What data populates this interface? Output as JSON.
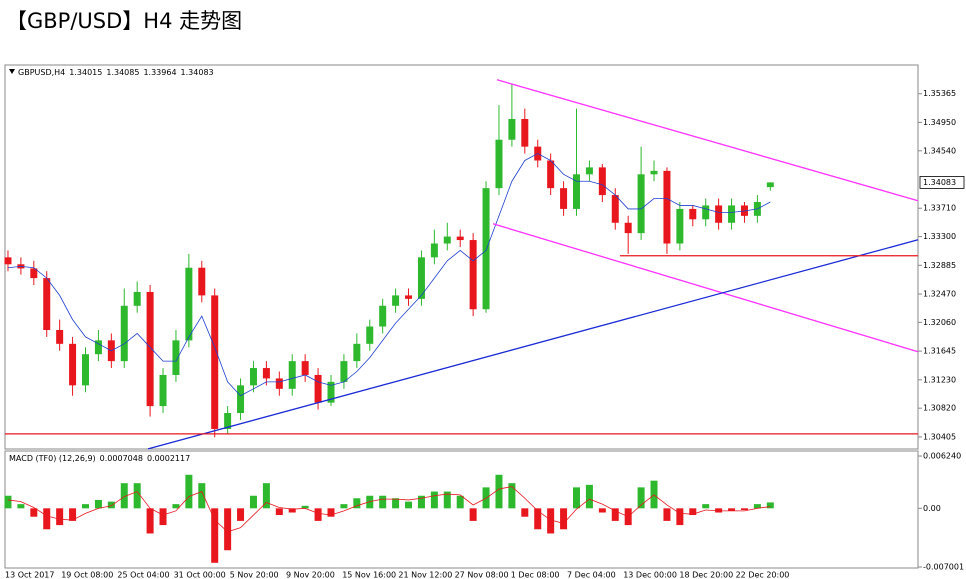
{
  "title": "【GBP/USD】H4 走势图",
  "chart_data": [
    {
      "type": "candlestick",
      "symbol": "GBPUSD,H4",
      "up_color": "#2db82d",
      "down_color": "#e8161d",
      "open": [
        1.33,
        1.329,
        1.3284,
        1.327,
        1.3195,
        1.3175,
        1.3115,
        1.316,
        1.318,
        1.315,
        1.323,
        1.325,
        1.3085,
        1.313,
        1.318,
        1.3285,
        1.3245,
        1.3052,
        1.3075,
        1.3115,
        1.314,
        1.3125,
        1.311,
        1.315,
        1.313,
        1.309,
        1.312,
        1.315,
        1.3175,
        1.32,
        1.323,
        1.3245,
        1.324,
        1.33,
        1.332,
        1.333,
        1.3325,
        1.3225,
        1.34,
        1.347,
        1.35,
        1.346,
        1.344,
        1.34,
        1.337,
        1.342,
        1.343,
        1.339,
        1.335,
        1.3335,
        1.342,
        1.3425,
        1.332,
        1.337,
        1.3355,
        1.3375,
        1.335,
        1.3375,
        1.336,
        1.34015
      ],
      "high": [
        1.331,
        1.33,
        1.3295,
        1.328,
        1.321,
        1.3185,
        1.317,
        1.3195,
        1.319,
        1.3255,
        1.3265,
        1.326,
        1.314,
        1.3195,
        1.3305,
        1.3295,
        1.3255,
        1.3085,
        1.3125,
        1.315,
        1.315,
        1.3135,
        1.316,
        1.316,
        1.314,
        1.313,
        1.316,
        1.319,
        1.321,
        1.324,
        1.3255,
        1.3255,
        1.331,
        1.334,
        1.335,
        1.334,
        1.3335,
        1.341,
        1.352,
        1.355,
        1.3515,
        1.347,
        1.345,
        1.341,
        1.3515,
        1.344,
        1.3435,
        1.34,
        1.336,
        1.346,
        1.344,
        1.343,
        1.338,
        1.3375,
        1.3385,
        1.3385,
        1.3385,
        1.338,
        1.339,
        1.34085
      ],
      "low": [
        1.328,
        1.3275,
        1.326,
        1.3185,
        1.3165,
        1.31,
        1.3105,
        1.315,
        1.314,
        1.314,
        1.322,
        1.307,
        1.3075,
        1.312,
        1.317,
        1.3235,
        1.304,
        1.3045,
        1.3065,
        1.3105,
        1.3115,
        1.31,
        1.31,
        1.312,
        1.308,
        1.3085,
        1.311,
        1.314,
        1.3165,
        1.319,
        1.322,
        1.323,
        1.323,
        1.329,
        1.331,
        1.3315,
        1.3215,
        1.322,
        1.339,
        1.346,
        1.345,
        1.343,
        1.339,
        1.336,
        1.336,
        1.341,
        1.338,
        1.334,
        1.3305,
        1.3325,
        1.341,
        1.3305,
        1.331,
        1.3345,
        1.3345,
        1.334,
        1.334,
        1.335,
        1.335,
        1.33964
      ],
      "close": [
        1.329,
        1.3284,
        1.327,
        1.3195,
        1.3175,
        1.3115,
        1.316,
        1.318,
        1.315,
        1.323,
        1.325,
        1.3085,
        1.313,
        1.318,
        1.3285,
        1.3245,
        1.3052,
        1.3075,
        1.3115,
        1.314,
        1.3125,
        1.311,
        1.315,
        1.313,
        1.309,
        1.312,
        1.315,
        1.3175,
        1.32,
        1.323,
        1.3245,
        1.324,
        1.33,
        1.332,
        1.333,
        1.3325,
        1.3225,
        1.34,
        1.347,
        1.35,
        1.346,
        1.344,
        1.34,
        1.337,
        1.342,
        1.343,
        1.339,
        1.335,
        1.3335,
        1.342,
        1.3425,
        1.332,
        1.337,
        1.3355,
        1.3375,
        1.335,
        1.3375,
        1.336,
        1.338,
        1.34083
      ],
      "ma": {
        "color": "#1f3fd0",
        "values": [
          1.3285,
          1.3287,
          1.3285,
          1.327,
          1.3245,
          1.321,
          1.3185,
          1.3175,
          1.3165,
          1.3175,
          1.319,
          1.317,
          1.315,
          1.315,
          1.3185,
          1.3215,
          1.317,
          1.312,
          1.31,
          1.311,
          1.312,
          1.312,
          1.3125,
          1.313,
          1.312,
          1.3115,
          1.312,
          1.3135,
          1.3155,
          1.318,
          1.3205,
          1.3225,
          1.3245,
          1.327,
          1.3295,
          1.331,
          1.3295,
          1.331,
          1.336,
          1.341,
          1.344,
          1.345,
          1.344,
          1.342,
          1.341,
          1.341,
          1.3405,
          1.339,
          1.337,
          1.337,
          1.3385,
          1.3385,
          1.3375,
          1.3375,
          1.337,
          1.3365,
          1.3365,
          1.3367,
          1.337,
          1.338
        ]
      },
      "overlays": [
        {
          "color": "#ff33ff",
          "points": [
            [
              37.85,
              1.35567
            ],
            [
              70.43,
              1.33818
            ]
          ]
        },
        {
          "color": "#ff33ff",
          "points": [
            [
              37.54,
              1.33485
            ],
            [
              70.43,
              1.31635
            ]
          ]
        },
        {
          "color": "#1a2bd6",
          "points": [
            [
              10.84,
              1.30232
            ],
            [
              70.43,
              1.33254
            ]
          ]
        },
        {
          "color": "#e8161d",
          "points": [
            [
              -0.23,
              1.30449
            ],
            [
              70.43,
              1.30449
            ]
          ]
        },
        {
          "color": "#e8161d",
          "points": [
            [
              47.37,
              1.33023
            ],
            [
              70.43,
              1.33023
            ]
          ]
        }
      ],
      "xlim": [
        -0.23,
        70.43
      ],
      "ylim": [
        1.3023,
        1.3578
      ],
      "yticks": [
        1.35365,
        {
          "value": 1.3495,
          "label": "1.34950"
        },
        {
          "value": 1.3454,
          "label": "1.34540"
        },
        {
          "value": 1.3371,
          "label": "1.33710"
        },
        {
          "value": 1.333,
          "label": "1.33300"
        },
        1.32885,
        {
          "value": 1.3247,
          "label": "1.32470"
        },
        {
          "value": 1.3206,
          "label": "1.32060"
        },
        1.31645,
        {
          "value": 1.3123,
          "label": "1.31230"
        },
        {
          "value": 1.3082,
          "label": "1.30820"
        },
        1.30405
      ],
      "x_labels": [
        "13 Oct 2017",
        "19 Oct 08:00",
        "25 Oct 04:00",
        "31 Oct 00:00",
        "5 Nov 20:00",
        "9 Nov 20:00",
        "15 Nov 16:00",
        "21 Nov 12:00",
        "27 Nov 08:00",
        "1 Dec 08:00",
        "7 Dec 04:00",
        "13 Dec 00:00",
        "18 Dec 20:00",
        "22 Dec 20:00"
      ]
    },
    {
      "type": "macd",
      "name": "MACD (TF0) (12,26,9)",
      "up_color": "#2db82d",
      "down_color": "#e8161d",
      "values": [
        0.0015,
        0.0005,
        -0.001,
        -0.0025,
        -0.002,
        -0.0015,
        0.0005,
        0.001,
        0.0008,
        0.003,
        0.003,
        -0.003,
        -0.002,
        0.0005,
        0.004,
        0.003,
        -0.0065,
        -0.005,
        -0.0015,
        0.0015,
        0.003,
        -0.0008,
        -0.0005,
        0.0003,
        -0.0015,
        -0.001,
        0.0005,
        0.0012,
        0.0015,
        0.0015,
        0.0012,
        0.0008,
        0.0015,
        0.002,
        0.002,
        0.0015,
        -0.0015,
        0.0025,
        0.004,
        0.003,
        -0.001,
        -0.0025,
        -0.003,
        -0.0025,
        0.0025,
        0.0028,
        -0.0005,
        -0.0015,
        -0.002,
        0.0025,
        0.0033,
        -0.0015,
        -0.002,
        -0.0008,
        0.0005,
        -0.0005,
        -0.0003,
        -0.0002,
        0.0005,
        0.0007048
      ],
      "signal": {
        "color": "#e8161d",
        "values": [
          0.001,
          0.0008,
          0.0001,
          -0.0009,
          -0.0013,
          -0.0014,
          -0.0006,
          0.0,
          0.0003,
          0.0014,
          0.002,
          0.0,
          -0.0008,
          -0.0003,
          0.0014,
          0.002,
          -0.0014,
          -0.0028,
          -0.0023,
          -0.0008,
          0.0007,
          0.0001,
          -0.0001,
          0.0,
          -0.0006,
          -0.0008,
          -0.0003,
          0.0003,
          0.0008,
          0.0011,
          0.0011,
          0.001,
          0.0012,
          0.0015,
          0.0017,
          0.0016,
          0.0004,
          0.0012,
          0.0023,
          0.0026,
          0.0012,
          -0.0003,
          -0.0014,
          -0.0018,
          -0.0001,
          0.0011,
          0.0005,
          -0.0003,
          -0.001,
          0.0004,
          0.0016,
          0.0004,
          -0.0006,
          -0.0007,
          -0.0002,
          -0.0003,
          -0.0003,
          -0.0003,
          0.0,
          0.0002117
        ]
      },
      "xlim": [
        -0.23,
        70.43
      ],
      "ylim": [
        -0.00712,
        0.00672
      ],
      "yticks": [
        {
          "value": 0.00624,
          "label": "0.006240"
        },
        {
          "value": 0,
          "label": "0.00"
        },
        -0.007001
      ]
    }
  ]
}
